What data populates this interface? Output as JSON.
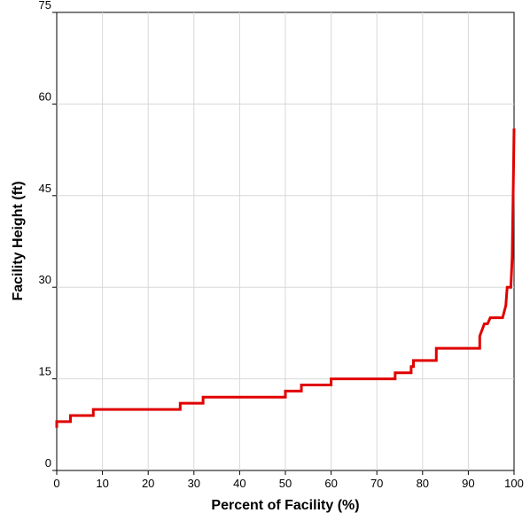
{
  "chart_data": {
    "type": "line",
    "title": "",
    "xlabel": "Percent of Facility (%)",
    "ylabel": "Facility Height (ft)",
    "xlim": [
      0,
      100
    ],
    "ylim": [
      0,
      75
    ],
    "xticks": [
      0,
      10,
      20,
      30,
      40,
      50,
      60,
      70,
      80,
      90,
      100
    ],
    "yticks": [
      0,
      15,
      30,
      45,
      60,
      75
    ],
    "grid": true,
    "legend": "none",
    "series": [
      {
        "color": "#e00000",
        "x": [
          0,
          0,
          0.3,
          3,
          3,
          8,
          8,
          27,
          27,
          32,
          32,
          50,
          50,
          53.5,
          53.5,
          60,
          60,
          74,
          74,
          77.5,
          77.5,
          78,
          78,
          83,
          83,
          92.5,
          92.5,
          93,
          93.5,
          94.2,
          94.8,
          95,
          95.5,
          97.5,
          98.2,
          98.5,
          99.3,
          99.6,
          99.7,
          99.8,
          99.9,
          100
        ],
        "y": [
          7,
          8,
          8,
          8,
          9,
          9,
          10,
          10,
          11,
          11,
          12,
          12,
          13,
          13,
          14,
          14,
          15,
          15,
          16,
          16,
          17,
          17,
          18,
          18,
          20,
          20,
          22,
          23,
          24,
          24,
          25,
          25,
          25,
          25,
          27,
          30,
          30,
          35,
          40,
          45,
          50,
          56
        ]
      }
    ]
  }
}
